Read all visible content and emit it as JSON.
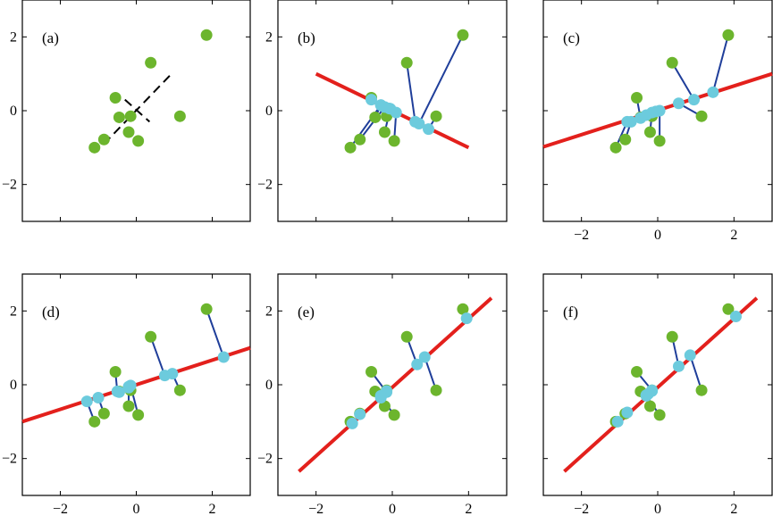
{
  "colors": {
    "data_point": "#6cb52d",
    "projection_point": "#6ccbdd",
    "fit_line": "#e3201c",
    "connector": "#1f3e9a",
    "pca_axes": "#000000",
    "frame": "#000000"
  },
  "chart_data": [
    {
      "type": "scatter",
      "title": "",
      "label": "(a)",
      "xlim": [
        -3,
        3
      ],
      "ylim": [
        -3,
        3
      ],
      "xticks": [
        -2,
        0,
        2
      ],
      "yticks": [
        -2,
        0,
        2
      ],
      "xtick_labels": [
        "−2",
        "0",
        "2"
      ],
      "ytick_labels": [
        "−2",
        "0",
        "2"
      ],
      "tick_labels_shown": {
        "x": false,
        "y": true
      },
      "points": [
        [
          -1.1,
          -1.0
        ],
        [
          -0.85,
          -0.78
        ],
        [
          -0.55,
          0.35
        ],
        [
          -0.45,
          -0.18
        ],
        [
          -0.2,
          -0.58
        ],
        [
          -0.15,
          -0.15
        ],
        [
          0.05,
          -0.82
        ],
        [
          0.38,
          1.3
        ],
        [
          1.15,
          -0.15
        ],
        [
          1.85,
          2.05
        ]
      ],
      "pca_axes": [
        [
          [
            -0.85,
            -0.9
          ],
          [
            0.9,
            0.97
          ]
        ],
        [
          [
            -0.3,
            0.3
          ],
          [
            0.35,
            -0.3
          ]
        ]
      ]
    },
    {
      "type": "scatter",
      "title": "",
      "label": "(b)",
      "xlim": [
        -3,
        3
      ],
      "ylim": [
        -3,
        3
      ],
      "xticks": [
        -2,
        0,
        2
      ],
      "yticks": [
        -2,
        0,
        2
      ],
      "xtick_labels": [
        "−2",
        "0",
        "2"
      ],
      "ytick_labels": [
        "−2",
        "0",
        "2"
      ],
      "tick_labels_shown": {
        "x": false,
        "y": true
      },
      "points": [
        [
          -1.1,
          -1.0
        ],
        [
          -0.85,
          -0.78
        ],
        [
          -0.55,
          0.35
        ],
        [
          -0.45,
          -0.18
        ],
        [
          -0.2,
          -0.58
        ],
        [
          -0.15,
          -0.15
        ],
        [
          0.05,
          -0.82
        ],
        [
          0.38,
          1.3
        ],
        [
          1.15,
          -0.15
        ],
        [
          1.85,
          2.05
        ]
      ],
      "line": [
        [
          -2.0,
          1.0
        ],
        [
          2.0,
          -1.0
        ]
      ],
      "projections": [
        [
          -0.3,
          0.15
        ],
        [
          -0.2,
          0.1
        ],
        [
          -0.55,
          0.3
        ],
        [
          -0.3,
          0.15
        ],
        [
          -0.05,
          0.05
        ],
        [
          -0.08,
          0.06
        ],
        [
          0.1,
          -0.05
        ],
        [
          0.6,
          -0.3
        ],
        [
          0.95,
          -0.5
        ],
        [
          0.7,
          -0.35
        ]
      ]
    },
    {
      "type": "scatter",
      "title": "",
      "label": "(c)",
      "xlim": [
        -3,
        3
      ],
      "ylim": [
        -3,
        3
      ],
      "xticks": [
        -2,
        0,
        2
      ],
      "yticks": [
        -2,
        0,
        2
      ],
      "xtick_labels": [
        "−2",
        "0",
        "2"
      ],
      "ytick_labels": [
        "−2",
        "0",
        "2"
      ],
      "tick_labels_shown": {
        "x": true,
        "y": false
      },
      "points": [
        [
          -1.1,
          -1.0
        ],
        [
          -0.85,
          -0.78
        ],
        [
          -0.55,
          0.35
        ],
        [
          -0.45,
          -0.18
        ],
        [
          -0.2,
          -0.58
        ],
        [
          -0.15,
          -0.15
        ],
        [
          0.05,
          -0.82
        ],
        [
          0.38,
          1.3
        ],
        [
          1.15,
          -0.15
        ],
        [
          1.85,
          2.05
        ]
      ],
      "line": [
        [
          -3.0,
          -0.98
        ],
        [
          3.0,
          1.0
        ]
      ],
      "projections": [
        [
          -0.8,
          -0.3
        ],
        [
          -0.7,
          -0.3
        ],
        [
          -0.45,
          -0.2
        ],
        [
          -0.3,
          -0.12
        ],
        [
          -0.15,
          -0.05
        ],
        [
          -0.05,
          -0.02
        ],
        [
          0.05,
          0.0
        ],
        [
          0.95,
          0.3
        ],
        [
          0.55,
          0.2
        ],
        [
          1.45,
          0.5
        ]
      ]
    },
    {
      "type": "scatter",
      "title": "",
      "label": "(d)",
      "xlim": [
        -3,
        3
      ],
      "ylim": [
        -3,
        3
      ],
      "xticks": [
        -2,
        0,
        2
      ],
      "yticks": [
        -2,
        0,
        2
      ],
      "xtick_labels": [
        "−2",
        "0",
        "2"
      ],
      "ytick_labels": [
        "−2",
        "0",
        "2"
      ],
      "tick_labels_shown": {
        "x": true,
        "y": true
      },
      "points": [
        [
          -1.1,
          -1.0
        ],
        [
          -0.85,
          -0.78
        ],
        [
          -0.55,
          0.35
        ],
        [
          -0.45,
          -0.18
        ],
        [
          -0.2,
          -0.58
        ],
        [
          -0.15,
          -0.15
        ],
        [
          0.05,
          -0.82
        ],
        [
          0.38,
          1.3
        ],
        [
          1.15,
          -0.15
        ],
        [
          1.85,
          2.05
        ]
      ],
      "line": [
        [
          -3.0,
          -1.0
        ],
        [
          3.0,
          1.0
        ]
      ],
      "projections": [
        [
          -1.3,
          -0.45
        ],
        [
          -1.0,
          -0.35
        ],
        [
          -0.5,
          -0.18
        ],
        [
          -0.45,
          -0.2
        ],
        [
          -0.2,
          -0.08
        ],
        [
          -0.2,
          -0.05
        ],
        [
          -0.15,
          -0.02
        ],
        [
          0.75,
          0.25
        ],
        [
          0.95,
          0.3
        ],
        [
          2.3,
          0.75
        ]
      ]
    },
    {
      "type": "scatter",
      "title": "",
      "label": "(e)",
      "xlim": [
        -3,
        3
      ],
      "ylim": [
        -3,
        3
      ],
      "xticks": [
        -2,
        0,
        2
      ],
      "yticks": [
        -2,
        0,
        2
      ],
      "xtick_labels": [
        "−2",
        "0",
        "2"
      ],
      "ytick_labels": [
        "−2",
        "0",
        "2"
      ],
      "tick_labels_shown": {
        "x": true,
        "y": true
      },
      "points": [
        [
          -1.1,
          -1.0
        ],
        [
          -0.85,
          -0.78
        ],
        [
          -0.55,
          0.35
        ],
        [
          -0.45,
          -0.18
        ],
        [
          -0.2,
          -0.58
        ],
        [
          -0.15,
          -0.15
        ],
        [
          0.05,
          -0.82
        ],
        [
          0.38,
          1.3
        ],
        [
          1.15,
          -0.15
        ],
        [
          1.85,
          2.05
        ]
      ],
      "line": [
        [
          -2.45,
          -2.35
        ],
        [
          2.6,
          2.35
        ]
      ],
      "projections": [
        [
          -1.05,
          -1.05
        ],
        [
          -0.85,
          -0.8
        ],
        [
          -0.15,
          -0.2
        ],
        [
          -0.3,
          -0.3
        ],
        [
          -0.3,
          -0.35
        ],
        [
          -0.15,
          -0.17
        ],
        [
          -0.3,
          -0.33
        ],
        [
          0.65,
          0.55
        ],
        [
          0.85,
          0.75
        ],
        [
          1.95,
          1.8
        ]
      ]
    },
    {
      "type": "scatter",
      "title": "",
      "label": "(f)",
      "xlim": [
        -3,
        3
      ],
      "ylim": [
        -3,
        3
      ],
      "xticks": [
        -2,
        0,
        2
      ],
      "yticks": [
        -2,
        0,
        2
      ],
      "xtick_labels": [
        "−2",
        "0",
        "2"
      ],
      "ytick_labels": [
        "−2",
        "0",
        "2"
      ],
      "tick_labels_shown": {
        "x": true,
        "y": false
      },
      "points": [
        [
          -1.1,
          -1.0
        ],
        [
          -0.85,
          -0.78
        ],
        [
          -0.55,
          0.35
        ],
        [
          -0.45,
          -0.18
        ],
        [
          -0.2,
          -0.58
        ],
        [
          -0.15,
          -0.15
        ],
        [
          0.05,
          -0.82
        ],
        [
          0.38,
          1.3
        ],
        [
          1.15,
          -0.15
        ],
        [
          1.85,
          2.05
        ]
      ],
      "line": [
        [
          -2.45,
          -2.35
        ],
        [
          2.6,
          2.35
        ]
      ],
      "projections": [
        [
          -1.05,
          -1.0
        ],
        [
          -0.8,
          -0.75
        ],
        [
          -0.15,
          -0.15
        ],
        [
          -0.3,
          -0.28
        ],
        [
          -0.25,
          -0.25
        ],
        [
          -0.15,
          -0.17
        ],
        [
          -0.3,
          -0.3
        ],
        [
          0.55,
          0.5
        ],
        [
          0.85,
          0.8
        ],
        [
          2.05,
          1.85
        ]
      ]
    }
  ]
}
